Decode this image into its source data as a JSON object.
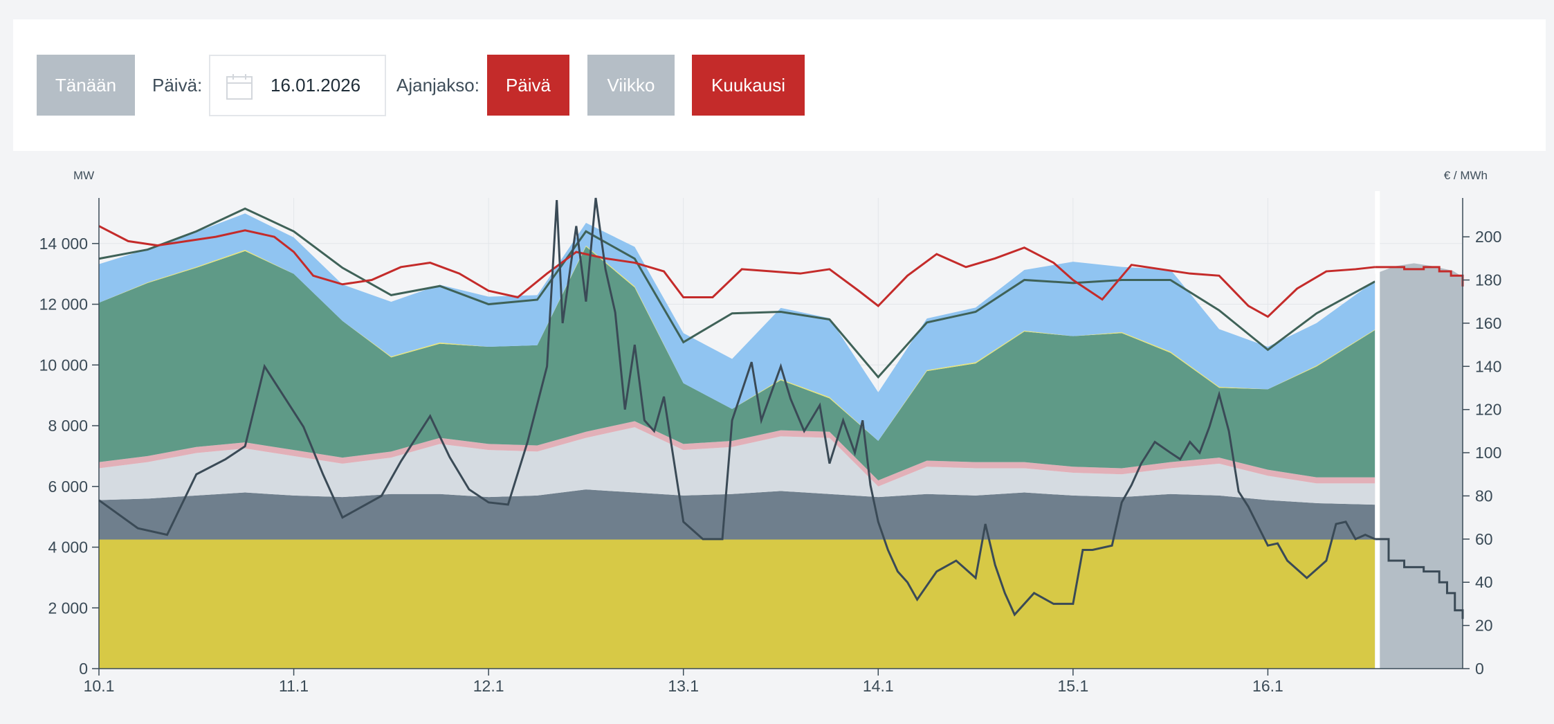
{
  "toolbar": {
    "today_label": "Tänään",
    "date_label": "Päivä:",
    "date_value": "16.01.2026",
    "period_label": "Ajanjakso:",
    "period_buttons": [
      "Päivä",
      "Viikko",
      "Kuukausi"
    ]
  },
  "colors": {
    "accent_red": "#c42b2a",
    "button_gray": "#b5bec6",
    "nuclear": "#d7c946",
    "hydro": "#6f7f8d",
    "other": "#d5dbe1",
    "thermal": "#e2b0b8",
    "wind": "#5f9a87",
    "import": "#90c4f1",
    "solar": "#e7e57a",
    "consumption_line": "#3f6258",
    "price_line": "#3a4a56",
    "forecast": "#b4bec6"
  },
  "chart_data": {
    "type": "area",
    "left_unit": "MW",
    "right_unit": "€ / MWh",
    "y_left_ticks": [
      "0",
      "2 000",
      "4 000",
      "6 000",
      "8 000",
      "10 000",
      "12 000",
      "14 000"
    ],
    "y_left_range": [
      0,
      15500
    ],
    "y_right_ticks": [
      "0",
      "20",
      "40",
      "60",
      "80",
      "100",
      "120",
      "140",
      "160",
      "180",
      "200"
    ],
    "y_right_range": [
      0,
      218
    ],
    "x_ticks": [
      "10.1",
      "11.1",
      "12.1",
      "13.1",
      "14.1",
      "15.1",
      "16.1"
    ],
    "x_range_days": [
      0,
      7.0
    ],
    "forecast_start_day": 6.55,
    "x": [
      0,
      0.25,
      0.5,
      0.75,
      1.0,
      1.25,
      1.5,
      1.75,
      2.0,
      2.25,
      2.5,
      2.75,
      3.0,
      3.25,
      3.5,
      3.75,
      4.0,
      4.25,
      4.5,
      4.75,
      5.0,
      5.25,
      5.5,
      5.75,
      6.0,
      6.25,
      6.55
    ],
    "series": [
      {
        "name": "nuclear",
        "values": [
          4250,
          4250,
          4250,
          4250,
          4250,
          4250,
          4250,
          4250,
          4250,
          4250,
          4250,
          4250,
          4250,
          4250,
          4250,
          4250,
          4250,
          4250,
          4250,
          4250,
          4250,
          4250,
          4250,
          4250,
          4250,
          4250,
          4250
        ]
      },
      {
        "name": "hydro",
        "values": [
          1300,
          1350,
          1450,
          1550,
          1450,
          1400,
          1500,
          1500,
          1400,
          1450,
          1650,
          1550,
          1450,
          1500,
          1600,
          1500,
          1400,
          1500,
          1450,
          1550,
          1450,
          1400,
          1500,
          1450,
          1300,
          1200,
          1150
        ]
      },
      {
        "name": "other",
        "values": [
          1050,
          1200,
          1400,
          1450,
          1300,
          1100,
          1200,
          1650,
          1550,
          1450,
          1700,
          2150,
          1500,
          1550,
          1800,
          1850,
          350,
          900,
          900,
          800,
          750,
          750,
          850,
          1050,
          800,
          650,
          700
        ]
      },
      {
        "name": "thermal",
        "values": [
          200,
          200,
          200,
          200,
          200,
          200,
          200,
          200,
          200,
          200,
          200,
          200,
          200,
          200,
          200,
          200,
          200,
          200,
          200,
          200,
          200,
          200,
          200,
          200,
          200,
          200,
          200
        ]
      },
      {
        "name": "wind",
        "values": [
          5250,
          5700,
          5900,
          6300,
          5800,
          4500,
          3100,
          3100,
          3200,
          3300,
          6100,
          4400,
          2000,
          1050,
          1650,
          1100,
          1300,
          2950,
          3250,
          4300,
          4300,
          4450,
          3600,
          2300,
          2650,
          3650,
          4850
        ]
      },
      {
        "name": "solar",
        "values": [
          0,
          20,
          30,
          40,
          0,
          0,
          30,
          40,
          0,
          0,
          30,
          40,
          0,
          0,
          30,
          40,
          0,
          30,
          40,
          30,
          0,
          30,
          40,
          30,
          0,
          30,
          20
        ]
      },
      {
        "name": "import",
        "values": [
          1270,
          1100,
          1150,
          1200,
          1200,
          1200,
          1800,
          1900,
          1650,
          1650,
          750,
          1300,
          1650,
          1650,
          2350,
          2600,
          1600,
          1700,
          1800,
          2000,
          2450,
          2150,
          2700,
          1900,
          1400,
          1400,
          1600
        ]
      },
      {
        "name": "consumption",
        "values": [
          13500,
          13800,
          14400,
          15150,
          14400,
          13200,
          12300,
          12600,
          12000,
          12150,
          14400,
          13500,
          10750,
          11700,
          11750,
          11500,
          9600,
          11400,
          11750,
          12800,
          12700,
          12800,
          12800,
          11800,
          10500,
          11700,
          12750
        ]
      }
    ],
    "price_x": [
      0,
      0.2,
      0.35,
      0.5,
      0.65,
      0.75,
      0.85,
      0.95,
      1.05,
      1.15,
      1.25,
      1.35,
      1.45,
      1.55,
      1.7,
      1.8,
      1.9,
      2.0,
      2.1,
      2.2,
      2.3,
      2.35,
      2.38,
      2.45,
      2.5,
      2.55,
      2.6,
      2.65,
      2.7,
      2.75,
      2.8,
      2.85,
      2.9,
      3.0,
      3.1,
      3.2,
      3.25,
      3.35,
      3.4,
      3.5,
      3.55,
      3.62,
      3.7,
      3.75,
      3.82,
      3.88,
      3.92,
      3.96,
      4.0,
      4.05,
      4.1,
      4.15,
      4.2,
      4.3,
      4.4,
      4.5,
      4.55,
      4.6,
      4.65,
      4.7,
      4.8,
      4.9,
      5.0,
      5.05,
      5.1,
      5.2,
      5.25,
      5.3,
      5.35,
      5.42,
      5.5,
      5.55,
      5.6,
      5.65,
      5.7,
      5.75,
      5.8,
      5.85,
      5.9,
      6.0,
      6.05,
      6.1,
      6.2,
      6.3,
      6.35,
      6.4,
      6.45,
      6.5,
      6.55
    ],
    "price_values": [
      78,
      65,
      62,
      90,
      97,
      103,
      140,
      126,
      112,
      90,
      70,
      75,
      80,
      96,
      117,
      98,
      83,
      77,
      76,
      105,
      140,
      217,
      160,
      205,
      170,
      218,
      185,
      165,
      120,
      150,
      115,
      110,
      126,
      68,
      60,
      60,
      115,
      142,
      115,
      140,
      125,
      110,
      122,
      95,
      115,
      100,
      115,
      85,
      68,
      55,
      45,
      40,
      32,
      45,
      50,
      42,
      67,
      48,
      35,
      25,
      35,
      30,
      30,
      55,
      55,
      57,
      77,
      85,
      95,
      105,
      100,
      97,
      105,
      100,
      112,
      127,
      110,
      82,
      75,
      57,
      58,
      50,
      42,
      50,
      67,
      68,
      60,
      62,
      60
    ],
    "price_forecast_x": [
      6.55,
      6.62,
      6.7,
      6.8,
      6.88,
      6.92,
      6.96,
      7.0
    ],
    "price_forecast_values": [
      60,
      50,
      47,
      45,
      40,
      35,
      27,
      23
    ],
    "ref_price_x": [
      0,
      0.15,
      0.3,
      0.45,
      0.6,
      0.75,
      0.9,
      1.0,
      1.1,
      1.25,
      1.4,
      1.55,
      1.7,
      1.85,
      2.0,
      2.15,
      2.3,
      2.45,
      2.6,
      2.75,
      2.9,
      3.0,
      3.15,
      3.3,
      3.45,
      3.6,
      3.75,
      3.9,
      4.0,
      4.15,
      4.3,
      4.45,
      4.6,
      4.75,
      4.9,
      5.0,
      5.15,
      5.3,
      5.45,
      5.6,
      5.75,
      5.9,
      6.0,
      6.15,
      6.3,
      6.45,
      6.55
    ],
    "ref_price_values": [
      205,
      198,
      196,
      198,
      200,
      203,
      200,
      193,
      182,
      178,
      180,
      186,
      188,
      183,
      175,
      172,
      183,
      193,
      190,
      188,
      184,
      172,
      172,
      185,
      184,
      183,
      185,
      175,
      168,
      182,
      192,
      186,
      190,
      195,
      188,
      180,
      171,
      187,
      185,
      183,
      182,
      168,
      163,
      176,
      184,
      185,
      186
    ],
    "ref_price_forecast_values": [
      186,
      185,
      186,
      184,
      182,
      177
    ],
    "forecast_consumption_values": [
      13000,
      13250,
      13350,
      13250,
      13100,
      12900
    ]
  }
}
